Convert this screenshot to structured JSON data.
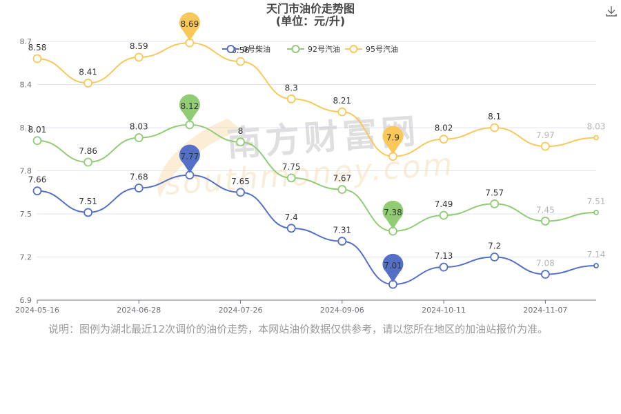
{
  "title": "天门市油价走势图",
  "subtitle": "(单位：元/升)",
  "note": "说明：图例为湖北最近12次调价的油价走势，本网站油价数据仅供参考，请以您所在地区的加油站报价为准。",
  "watermark": {
    "cn": "南方财富网",
    "en": "southmoney.com"
  },
  "icons": {
    "download": "download-icon"
  },
  "chart_data": {
    "type": "line",
    "smooth": true,
    "ylim": [
      6.9,
      8.7
    ],
    "yticks": [
      "6.9",
      "7.2",
      "7.5",
      "7.8",
      "8.1",
      "8.4",
      "8.7"
    ],
    "xtick_labels": [
      "2024-05-16",
      "2024-06-28",
      "2024-07-26",
      "2024-09-06",
      "2024-10-11",
      "2024-11-07"
    ],
    "legend_position": "top-center",
    "grid": true,
    "series": [
      {
        "name": "0号柴油",
        "color": "#5470c6",
        "values": [
          7.66,
          7.51,
          7.68,
          7.77,
          7.65,
          7.4,
          7.31,
          7.01,
          7.13,
          7.2,
          7.08,
          7.14
        ],
        "labels": [
          "7.66",
          "7.51",
          "7.68",
          "7.77",
          "7.65",
          "7.4",
          "7.31",
          "7.01",
          "7.13",
          "7.2",
          "7.08",
          "7.14"
        ],
        "max_pin": "7.77",
        "min_pin": "7.01"
      },
      {
        "name": "92号汽油",
        "color": "#91cc75",
        "values": [
          8.01,
          7.86,
          8.03,
          8.12,
          8,
          7.75,
          7.67,
          7.38,
          7.49,
          7.57,
          7.45,
          7.51
        ],
        "labels": [
          "8.01",
          "7.86",
          "8.03",
          "8.12",
          "8",
          "7.75",
          "7.67",
          "7.38",
          "7.49",
          "7.57",
          "7.45",
          "7.51"
        ],
        "max_pin": "8.12",
        "min_pin": "7.38"
      },
      {
        "name": "95号汽油",
        "color": "#fac858",
        "values": [
          8.58,
          8.41,
          8.59,
          8.69,
          8.56,
          8.3,
          8.21,
          7.9,
          8.02,
          8.1,
          7.97,
          8.03
        ],
        "labels": [
          "8.58",
          "8.41",
          "8.59",
          "8.69",
          "8.56",
          "8.3",
          "8.21",
          "7.9",
          "8.02",
          "8.1",
          "7.97",
          "8.03"
        ],
        "max_pin": "8.69",
        "min_pin": "7.9"
      }
    ]
  }
}
